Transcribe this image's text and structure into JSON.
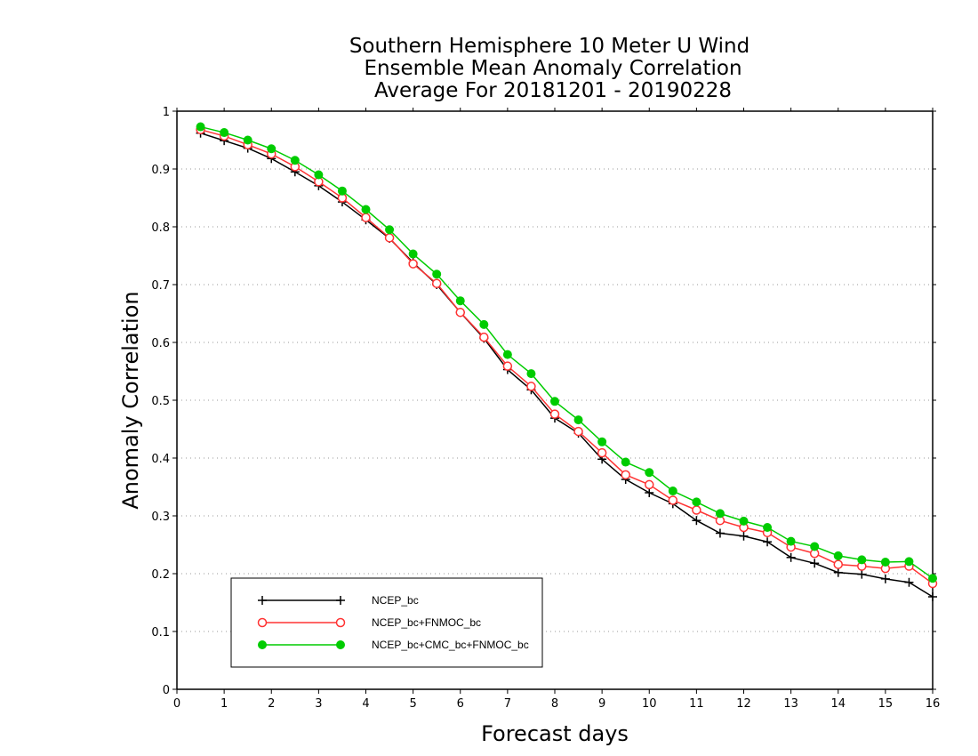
{
  "chart_data": {
    "type": "line",
    "title": [
      "Southern Hemisphere 10 Meter U Wind",
      "Ensemble Mean Anomaly Correlation",
      "Average For 20181201 - 20190228"
    ],
    "xlabel": "Forecast days",
    "ylabel": "Anomaly Correlation",
    "xlim": [
      0,
      16
    ],
    "ylim": [
      0,
      1
    ],
    "xticks": [
      0,
      1,
      2,
      3,
      4,
      5,
      6,
      7,
      8,
      9,
      10,
      11,
      12,
      13,
      14,
      15,
      16
    ],
    "yticks": [
      0,
      0.1,
      0.2,
      0.3,
      0.4,
      0.5,
      0.6,
      0.7,
      0.8,
      0.9,
      1
    ],
    "grid": true,
    "legend_position": "bottom-left",
    "x": [
      0.5,
      1,
      1.5,
      2,
      2.5,
      3,
      3.5,
      4,
      4.5,
      5,
      5.5,
      6,
      6.5,
      7,
      7.5,
      8,
      8.5,
      9,
      9.5,
      10,
      10.5,
      11,
      11.5,
      12,
      12.5,
      13,
      13.5,
      14,
      14.5,
      15,
      15.5,
      16
    ],
    "series": [
      {
        "name": "NCEP_bc",
        "color": "#000000",
        "marker": "plus",
        "values": [
          0.962,
          0.949,
          0.936,
          0.918,
          0.895,
          0.871,
          0.843,
          0.812,
          0.78,
          0.738,
          0.7,
          0.652,
          0.607,
          0.553,
          0.518,
          0.469,
          0.443,
          0.398,
          0.363,
          0.34,
          0.321,
          0.292,
          0.27,
          0.265,
          0.255,
          0.228,
          0.218,
          0.202,
          0.199,
          0.191,
          0.185,
          0.16
        ]
      },
      {
        "name": "NCEP_bc+FNMOC_bc",
        "color": "#ff3333",
        "marker": "open-circle",
        "values": [
          0.968,
          0.957,
          0.942,
          0.926,
          0.904,
          0.878,
          0.85,
          0.816,
          0.781,
          0.736,
          0.702,
          0.652,
          0.609,
          0.559,
          0.524,
          0.476,
          0.446,
          0.409,
          0.371,
          0.354,
          0.327,
          0.31,
          0.292,
          0.28,
          0.271,
          0.246,
          0.235,
          0.216,
          0.213,
          0.209,
          0.213,
          0.183
        ]
      },
      {
        "name": "NCEP_bc+CMC_bc+FNMOC_bc",
        "color": "#00cc00",
        "marker": "filled-circle",
        "values": [
          0.973,
          0.963,
          0.95,
          0.935,
          0.915,
          0.89,
          0.862,
          0.83,
          0.795,
          0.753,
          0.718,
          0.672,
          0.631,
          0.579,
          0.546,
          0.498,
          0.466,
          0.428,
          0.393,
          0.375,
          0.343,
          0.324,
          0.304,
          0.291,
          0.28,
          0.256,
          0.247,
          0.231,
          0.224,
          0.22,
          0.221,
          0.192
        ]
      }
    ]
  }
}
